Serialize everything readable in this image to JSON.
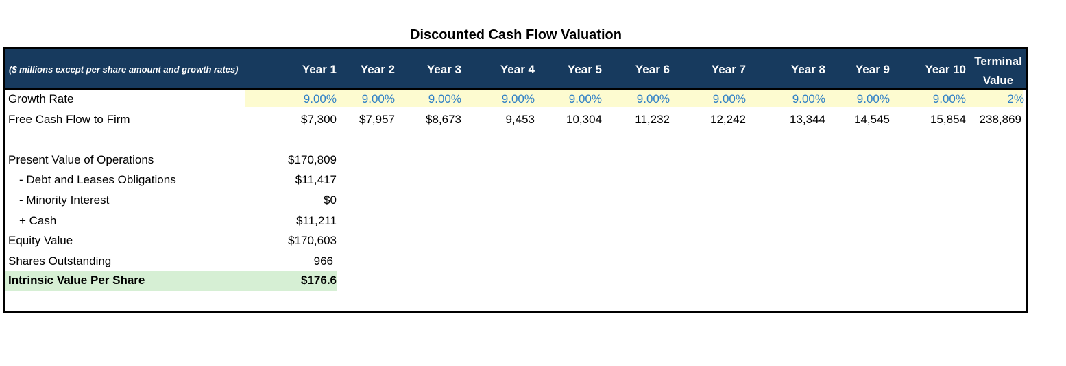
{
  "title": "Discounted Cash Flow Valuation",
  "header": {
    "note": "($ millions except per share amount and growth rates)",
    "years": [
      "Year 1",
      "Year 2",
      "Year 3",
      "Year 4",
      "Year 5",
      "Year 6",
      "Year 7",
      "Year 8",
      "Year 9",
      "Year 10"
    ],
    "terminal_line1": "Terminal",
    "terminal_line2": "Value"
  },
  "growth_rate": {
    "label": "Growth Rate",
    "values": [
      "9.00%",
      "9.00%",
      "9.00%",
      "9.00%",
      "9.00%",
      "9.00%",
      "9.00%",
      "9.00%",
      "9.00%",
      "9.00%"
    ],
    "terminal": "2%"
  },
  "fcf": {
    "label": "Free Cash Flow to Firm",
    "values": [
      "$7,300",
      "$7,957",
      "$8,673",
      "9,453",
      "10,304",
      "11,232",
      "12,242",
      "13,344",
      "14,545",
      "15,854"
    ],
    "terminal": "238,869"
  },
  "summary": [
    {
      "label": "Present Value of Operations",
      "value": "$170,809"
    },
    {
      "label": "- Debt and Leases Obligations",
      "value": "$11,417"
    },
    {
      "label": "- Minority Interest",
      "value": "$0"
    },
    {
      "label": "+ Cash",
      "value": "$11,211"
    },
    {
      "label": "Equity Value",
      "value": "$170,603"
    },
    {
      "label": "Shares Outstanding",
      "value": "966"
    },
    {
      "label": "Intrinsic Value Per Share",
      "value": "$176.6"
    }
  ],
  "colors": {
    "header_bg": "#173a5e",
    "growth_bg": "#fdfbd0",
    "growth_text": "#2e7fc6",
    "highlight_bg": "#d6efd4"
  }
}
